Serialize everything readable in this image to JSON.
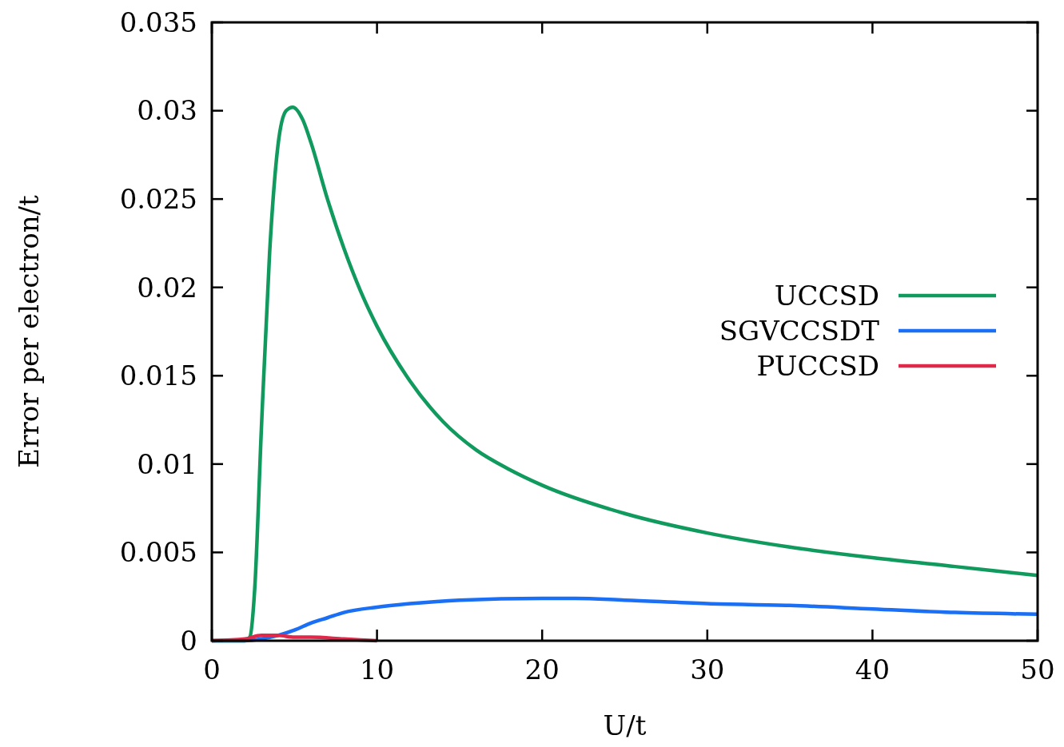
{
  "chart_data": {
    "type": "line",
    "xlabel": "U/t",
    "ylabel": "Error per electron/t",
    "xlim": [
      0,
      50
    ],
    "ylim": [
      0,
      0.035
    ],
    "xticks": [
      0,
      10,
      20,
      30,
      40,
      50
    ],
    "yticks": [
      0,
      0.005,
      0.01,
      0.015,
      0.02,
      0.025,
      0.03,
      0.035
    ],
    "grid": false,
    "legend": "right",
    "line_style": "solid",
    "series": [
      {
        "name": "UCCSD",
        "color": "#109a5e",
        "x": [
          0,
          1,
          2,
          2.3,
          2.6,
          3,
          3.5,
          4,
          4.5,
          4.9,
          5.5,
          6,
          7,
          8,
          9,
          10,
          12,
          14,
          16,
          18,
          20,
          25,
          30,
          35,
          40,
          45,
          50
        ],
        "values": [
          0,
          0,
          0,
          0.0002,
          0.003,
          0.012,
          0.022,
          0.028,
          0.03,
          0.0302,
          0.0295,
          0.0282,
          0.025,
          0.0222,
          0.0198,
          0.0178,
          0.0147,
          0.0124,
          0.0108,
          0.0097,
          0.0088,
          0.0072,
          0.0061,
          0.0053,
          0.0047,
          0.0042,
          0.0037
        ]
      },
      {
        "name": "SGVCCSDT",
        "color": "#1a6ff5",
        "x": [
          0,
          2,
          3,
          4,
          5,
          6,
          7,
          8,
          10,
          12,
          15,
          20,
          22,
          25,
          30,
          35,
          40,
          45,
          50
        ],
        "values": [
          0,
          0,
          0.0001,
          0.0003,
          0.0006,
          0.001,
          0.0013,
          0.0016,
          0.0019,
          0.0021,
          0.0023,
          0.0024,
          0.0024,
          0.0023,
          0.0021,
          0.002,
          0.0018,
          0.0016,
          0.0015
        ]
      },
      {
        "name": "PUCCSD",
        "color": "#e0284a",
        "x": [
          0,
          2,
          3,
          4,
          5,
          6,
          8,
          10
        ],
        "values": [
          0,
          0.0001,
          0.0003,
          0.0003,
          0.0002,
          0.0002,
          0.0001,
          0
        ]
      }
    ]
  }
}
